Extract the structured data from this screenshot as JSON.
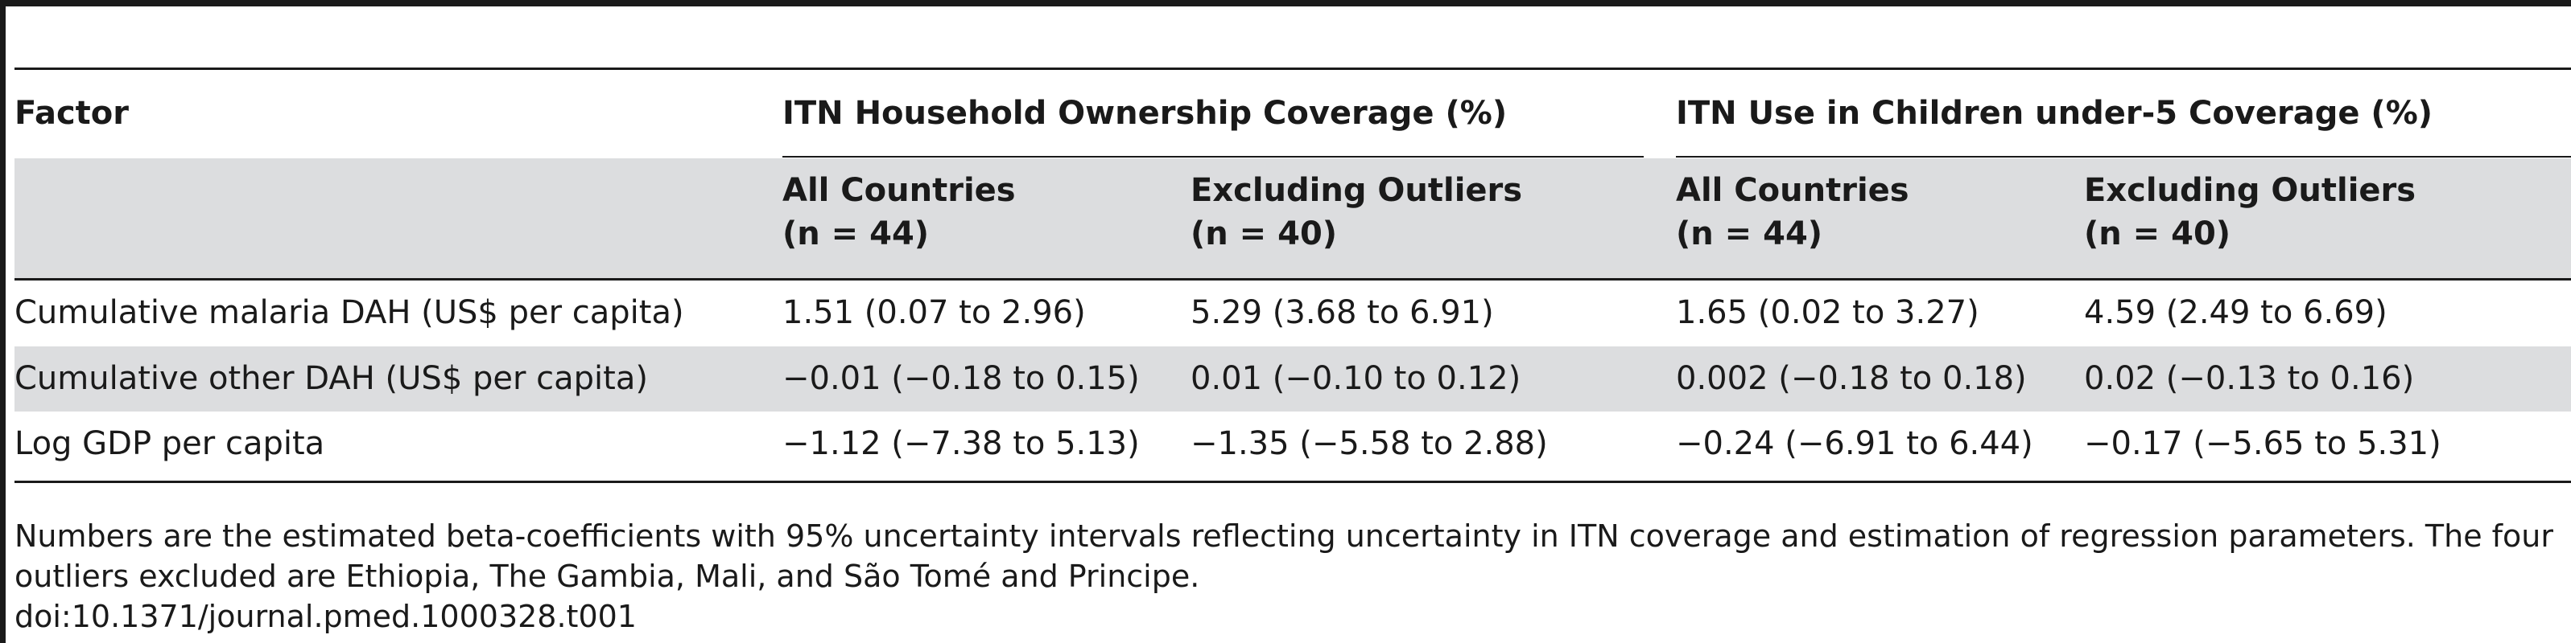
{
  "table": {
    "headers": {
      "factor": "Factor",
      "group1": "ITN Household Ownership Coverage (%)",
      "group2": "ITN Use in Children under-5 Coverage (%)",
      "sub": [
        {
          "line1": "All Countries",
          "line2": "(n = 44)"
        },
        {
          "line1": "Excluding Outliers",
          "line2": "(n = 40)"
        },
        {
          "line1": "All Countries",
          "line2": "(n = 44)"
        },
        {
          "line1": "Excluding Outliers",
          "line2": "(n = 40)"
        }
      ]
    },
    "rows": [
      {
        "factor": "Cumulative malaria DAH (US$ per capita)",
        "cells": [
          "1.51 (0.07 to 2.96)",
          "5.29 (3.68 to 6.91)",
          "1.65 (0.02 to 3.27)",
          "4.59 (2.49 to 6.69)"
        ]
      },
      {
        "factor": "Cumulative other DAH (US$ per capita)",
        "cells": [
          "−0.01 (−0.18 to 0.15)",
          "0.01 (−0.10 to 0.12)",
          "0.002 (−0.18 to 0.18)",
          "0.02 (−0.13 to 0.16)"
        ]
      },
      {
        "factor": "Log GDP per capita",
        "cells": [
          "−1.12 (−7.38 to 5.13)",
          "−1.35 (−5.58 to 2.88)",
          "−0.24 (−6.91 to 6.44)",
          "−0.17 (−5.65 to 5.31)"
        ]
      }
    ]
  },
  "footnote": {
    "line1": "Numbers are the estimated beta-coefficients with 95% uncertainty intervals reflecting uncertainty in ITN coverage and estimation of regression parameters. The four",
    "line2": "outliers excluded are Ethiopia, The Gambia, Mali, and São Tomé and Principe.",
    "doi": "doi:10.1371/journal.pmed.1000328.t001"
  }
}
